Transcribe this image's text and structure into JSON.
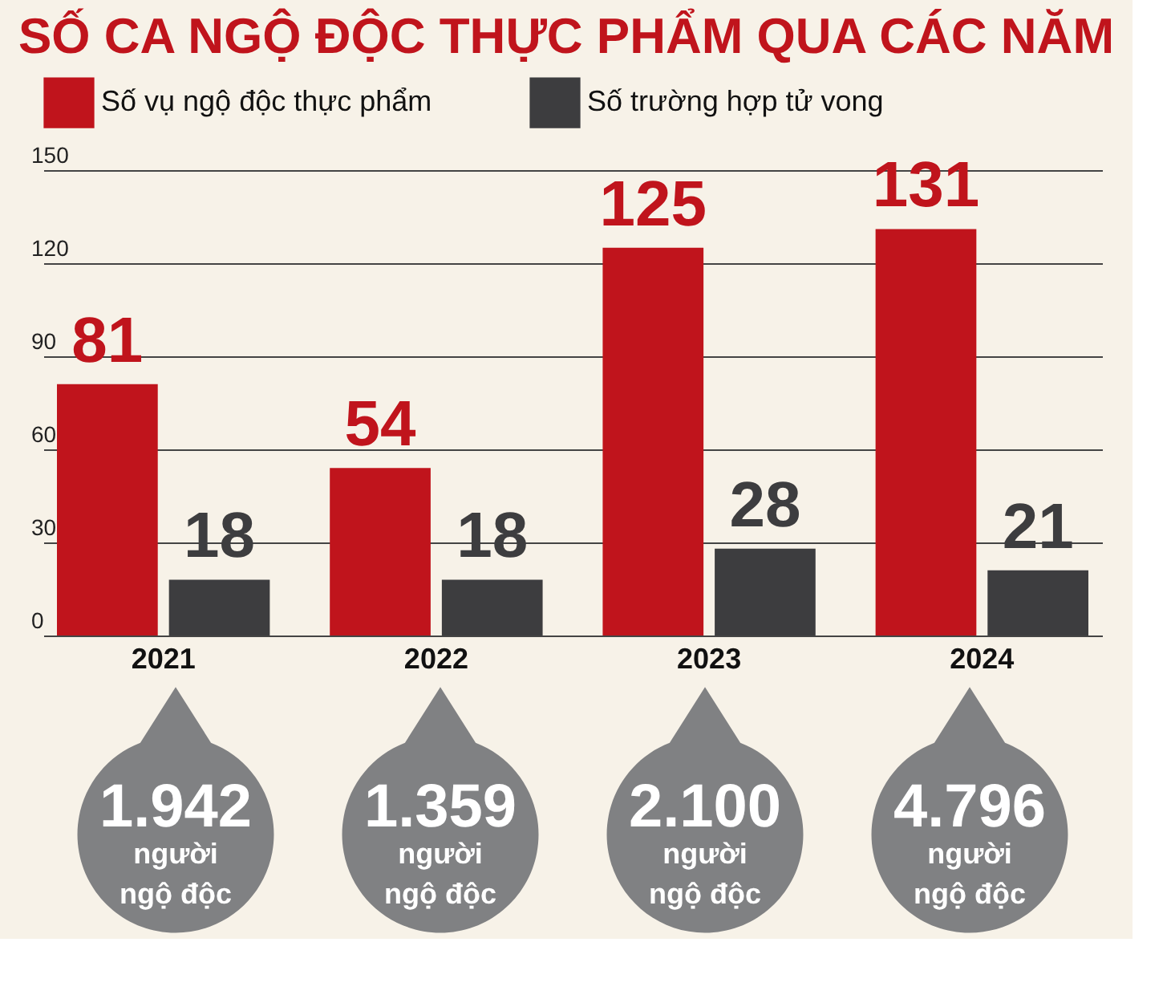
{
  "chart_data": {
    "type": "bar",
    "title": "SỐ CA NGỘ ĐỘC THỰC PHẨM QUA CÁC NĂM",
    "categories": [
      "2021",
      "2022",
      "2023",
      "2024"
    ],
    "series": [
      {
        "name": "Số vụ ngộ độc thực phẩm",
        "color": "#c0141c",
        "values": [
          81,
          54,
          125,
          131
        ]
      },
      {
        "name": "Số trường hợp tử vong",
        "color": "#3d3d3f",
        "values": [
          18,
          18,
          28,
          21
        ]
      }
    ],
    "ylim": [
      0,
      150
    ],
    "yticks": [
      0,
      30,
      60,
      90,
      120,
      150
    ],
    "grid": "y",
    "legend": "top left",
    "data_labels": true,
    "annotations": [
      "1.942 người ngộ độc",
      "1.359 người ngộ độc",
      "2.100 người ngộ độc",
      "4.796 người ngộ độc"
    ]
  }
}
